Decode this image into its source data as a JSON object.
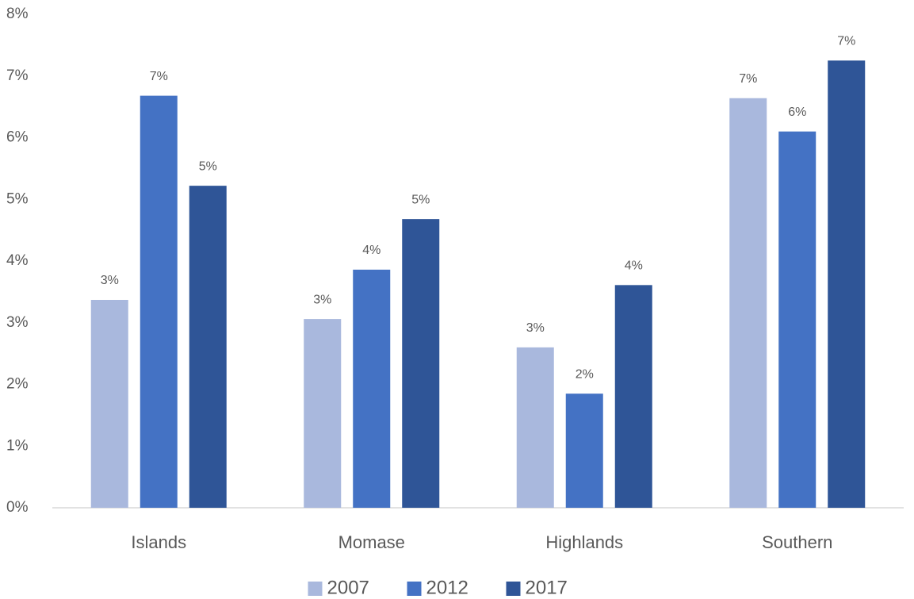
{
  "chart_data": {
    "type": "bar",
    "categories": [
      "Islands",
      "Momase",
      "Highlands",
      "Southern"
    ],
    "series": [
      {
        "name": "2007",
        "color": "#a9b8dd",
        "values": [
          3.37,
          3.06,
          2.6,
          6.64
        ],
        "value_labels": [
          "3%",
          "3%",
          "3%",
          "7%"
        ]
      },
      {
        "name": "2012",
        "color": "#4472c4",
        "values": [
          6.68,
          3.86,
          1.85,
          6.1
        ],
        "value_labels": [
          "7%",
          "4%",
          "2%",
          "6%"
        ]
      },
      {
        "name": "2017",
        "color": "#2f5597",
        "values": [
          5.22,
          4.68,
          3.61,
          7.25
        ],
        "value_labels": [
          "5%",
          "5%",
          "4%",
          "7%"
        ]
      }
    ],
    "ylim": [
      0,
      8
    ],
    "yticks": [
      {
        "value": 0,
        "label": "0%"
      },
      {
        "value": 1,
        "label": "1%"
      },
      {
        "value": 2,
        "label": "2%"
      },
      {
        "value": 3,
        "label": "3%"
      },
      {
        "value": 4,
        "label": "4%"
      },
      {
        "value": 5,
        "label": "5%"
      },
      {
        "value": 6,
        "label": "6%"
      },
      {
        "value": 7,
        "label": "7%"
      },
      {
        "value": 8,
        "label": "8%"
      }
    ],
    "grid": false,
    "legend": "bottom"
  }
}
